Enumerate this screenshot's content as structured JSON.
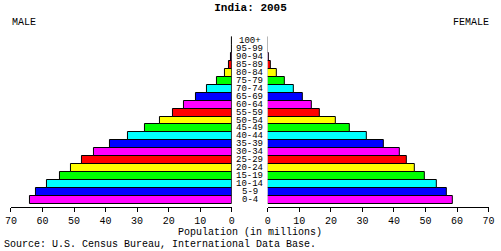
{
  "chart_data": {
    "type": "bar",
    "orientation": "horizontal",
    "title": "India: 2005",
    "x_label": "Population (in millions)",
    "source": "Source: U.S. Census Bureau, International Data Base.",
    "categories": [
      "0-4",
      "5-9",
      "10-14",
      "15-19",
      "20-24",
      "25-29",
      "30-34",
      "35-39",
      "40-44",
      "45-49",
      "50-54",
      "55-59",
      "60-64",
      "65-69",
      "70-74",
      "75-79",
      "80-84",
      "85-89",
      "90-94",
      "95-99",
      "100+"
    ],
    "colors": [
      "#ff00ff",
      "#0000ff",
      "#00ffff",
      "#00ff00",
      "#ffff00",
      "#ff0000",
      "#ff00ff",
      "#0000ff",
      "#00ffff",
      "#00ff00",
      "#ffff00",
      "#ff0000",
      "#ff00ff",
      "#0000ff",
      "#00ffff",
      "#00ff00",
      "#ffff00",
      "#ff0000",
      "#ff00ff",
      "#0000ff",
      "#00ffff"
    ],
    "series": [
      {
        "name": "MALE",
        "values": [
          64,
          62,
          58.6,
          54.5,
          51,
          47.5,
          43.7,
          38.6,
          33,
          27.6,
          22.8,
          18.7,
          15.2,
          11.4,
          7.9,
          4.8,
          2.2,
          0.9,
          0.3,
          0.05,
          0.01
        ]
      },
      {
        "name": "FEMALE",
        "values": [
          58.6,
          56.7,
          53.5,
          49.7,
          46.6,
          44,
          41.8,
          36.7,
          31.4,
          26,
          21.5,
          16.5,
          14,
          11,
          8.2,
          5.4,
          2.8,
          1,
          0.3,
          0.1,
          0.02
        ]
      }
    ],
    "xlim": [
      0,
      70
    ],
    "xticks": [
      0,
      10,
      20,
      30,
      40,
      50,
      60,
      70
    ],
    "grid": false
  }
}
